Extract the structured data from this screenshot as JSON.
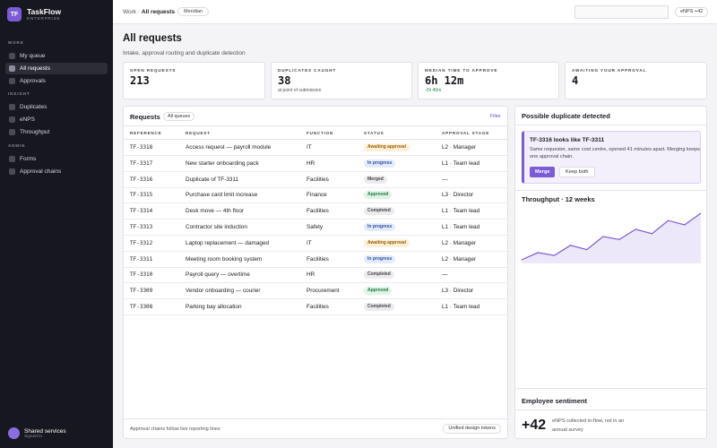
{
  "brand": {
    "initials": "TF",
    "name": "TaskFlow",
    "edition": "ENTERPRISE"
  },
  "sidebar": {
    "sections": [
      {
        "label": "WORK",
        "items": [
          "My queue",
          "All requests",
          "Approvals"
        ]
      },
      {
        "label": "INSIGHT",
        "items": [
          "Duplicates",
          "eNPS",
          "Throughput"
        ]
      },
      {
        "label": "ADMIN",
        "items": [
          "Forms",
          "Approval chains"
        ]
      }
    ],
    "active_item": "All requests",
    "user": {
      "name": "Shared services",
      "status": "Signed in"
    }
  },
  "topbar": {
    "breadcrumb_parent": "Work",
    "breadcrumb_current": "All requests",
    "theme_pill": "Meridian",
    "search_placeholder": "",
    "enps_pill": "eNPS +42"
  },
  "page": {
    "title": "All requests",
    "subtitle": "Intake, approval routing and duplicate detection"
  },
  "stats": [
    {
      "label": "OPEN REQUESTS",
      "value": "213",
      "note": "",
      "note_tone": "neutral"
    },
    {
      "label": "DUPLICATES CAUGHT",
      "value": "38",
      "note": "at point of submission",
      "note_tone": "neutral"
    },
    {
      "label": "MEDIAN TIME TO APPROVE",
      "value": "6h 12m",
      "note": "-2h 40m",
      "note_tone": "good"
    },
    {
      "label": "AWAITING YOUR APPROVAL",
      "value": "4",
      "note": "",
      "note_tone": "neutral"
    }
  ],
  "requests": {
    "title": "Requests",
    "queue_filter": "All queues",
    "filter_label": "Filter",
    "columns": [
      "REFERENCE",
      "REQUEST",
      "FUNCTION",
      "STATUS",
      "APPROVAL STAGE"
    ],
    "rows": [
      {
        "ref": "TF-3318",
        "request": "Access request — payroll module",
        "function": "IT",
        "status": "Awaiting approval",
        "stage": "L2 · Manager"
      },
      {
        "ref": "TF-3317",
        "request": "New starter onboarding pack",
        "function": "HR",
        "status": "In progress",
        "stage": "L1 · Team lead"
      },
      {
        "ref": "TF-3316",
        "request": "Duplicate of TF-3311",
        "function": "Facilities",
        "status": "Merged",
        "stage": "—"
      },
      {
        "ref": "TF-3315",
        "request": "Purchase card limit increase",
        "function": "Finance",
        "status": "Approved",
        "stage": "L3 · Director"
      },
      {
        "ref": "TF-3314",
        "request": "Desk move — 4th floor",
        "function": "Facilities",
        "status": "Completed",
        "stage": "L1 · Team lead"
      },
      {
        "ref": "TF-3313",
        "request": "Contractor site induction",
        "function": "Safety",
        "status": "In progress",
        "stage": "L1 · Team lead"
      },
      {
        "ref": "TF-3312",
        "request": "Laptop replacement — damaged",
        "function": "IT",
        "status": "Awaiting approval",
        "stage": "L2 · Manager"
      },
      {
        "ref": "TF-3311",
        "request": "Meeting room booking system",
        "function": "Facilities",
        "status": "In progress",
        "stage": "L2 · Manager"
      },
      {
        "ref": "TF-3310",
        "request": "Payroll query — overtime",
        "function": "HR",
        "status": "Completed",
        "stage": "—"
      },
      {
        "ref": "TF-3309",
        "request": "Vendor onboarding — courier",
        "function": "Procurement",
        "status": "Approved",
        "stage": "L3 · Director"
      },
      {
        "ref": "TF-3308",
        "request": "Parking bay allocation",
        "function": "Facilities",
        "status": "Completed",
        "stage": "L1 · Team lead"
      }
    ],
    "footer_note": "Approval chains follow live reporting lines",
    "footer_button": "Unified design tokens"
  },
  "status_colors": {
    "Awaiting approval": {
      "bg": "#fdf0d9",
      "fg": "#a05a00"
    },
    "In progress": {
      "bg": "#e3ebfb",
      "fg": "#2c4fa8"
    },
    "Merged": {
      "bg": "#ececf0",
      "fg": "#444444"
    },
    "Approved": {
      "bg": "#e0f3e6",
      "fg": "#1d7a42"
    },
    "Completed": {
      "bg": "#ececf0",
      "fg": "#444444"
    }
  },
  "duplicate": {
    "title": "Possible duplicate detected",
    "headline": "TF-3316 looks like TF-3311",
    "body": "Same requester, same cost centre, opened 41 minutes apart. Merging keeps one approval chain.",
    "merge_label": "Merge",
    "keep_label": "Keep both"
  },
  "throughput": {
    "title": "Throughput · 12 weeks",
    "values": [
      28,
      33,
      31,
      38,
      35,
      44,
      42,
      49,
      46,
      55,
      52,
      60
    ]
  },
  "sentiment": {
    "title": "Employee sentiment",
    "value": "+42",
    "note": "eNPS collected in-flow, not in an annual survey"
  },
  "colors": {
    "accent": "#7c5bd6",
    "sidebar_bg": "#17171f",
    "positive": "#1d8a4c"
  }
}
